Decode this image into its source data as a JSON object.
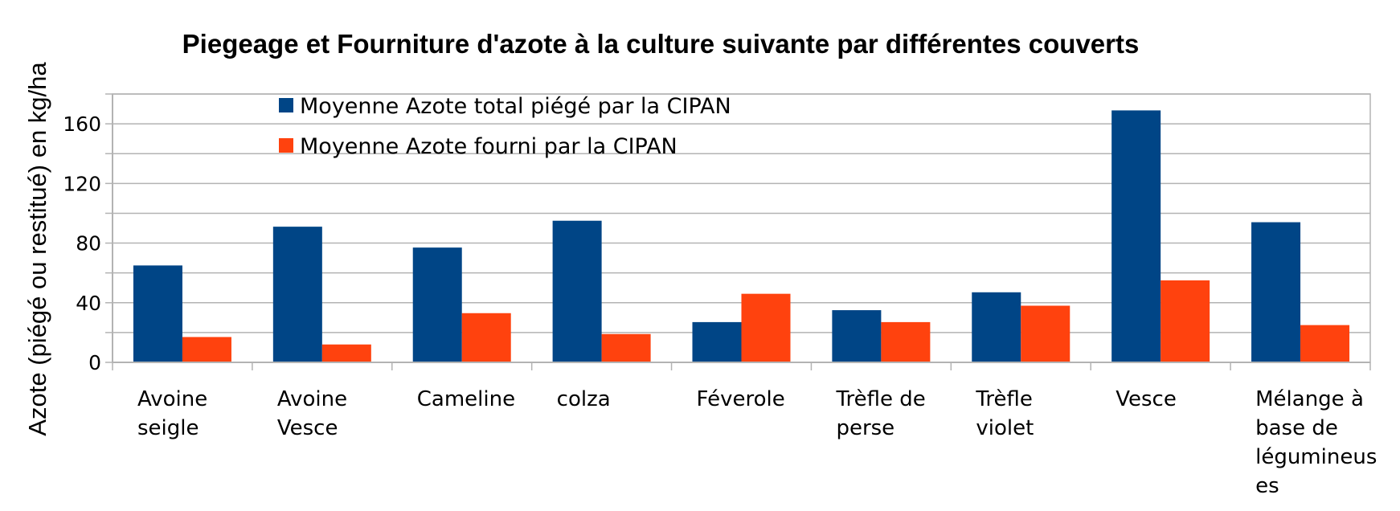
{
  "chart_data": {
    "type": "bar",
    "title": "Piegeage et Fourniture d'azote à la culture suivante par différentes couverts",
    "xlabel": "",
    "ylabel": "Azote (piégé ou restitué) en kg/ha",
    "ylim": [
      0,
      180
    ],
    "yticks": [
      0,
      40,
      80,
      120,
      160
    ],
    "grid": true,
    "legend_position": "top-left",
    "categories": [
      [
        "Avoine",
        "seigle"
      ],
      [
        "Avoine",
        "Vesce"
      ],
      [
        "Cameline"
      ],
      [
        "colza"
      ],
      [
        "Féverole"
      ],
      [
        "Trèfle de",
        "perse"
      ],
      [
        "Trèfle",
        "violet"
      ],
      [
        "Vesce"
      ],
      [
        "Mélange à",
        "base de",
        "légumineus",
        "es"
      ]
    ],
    "series": [
      {
        "name": "Moyenne Azote total piégé par la CIPAN",
        "color": "#004586",
        "values": [
          65,
          91,
          77,
          95,
          27,
          35,
          47,
          169,
          94
        ]
      },
      {
        "name": "Moyenne Azote fourni par la CIPAN",
        "color": "#ff420e",
        "values": [
          17,
          12,
          33,
          19,
          46,
          27,
          38,
          55,
          25
        ]
      }
    ]
  }
}
